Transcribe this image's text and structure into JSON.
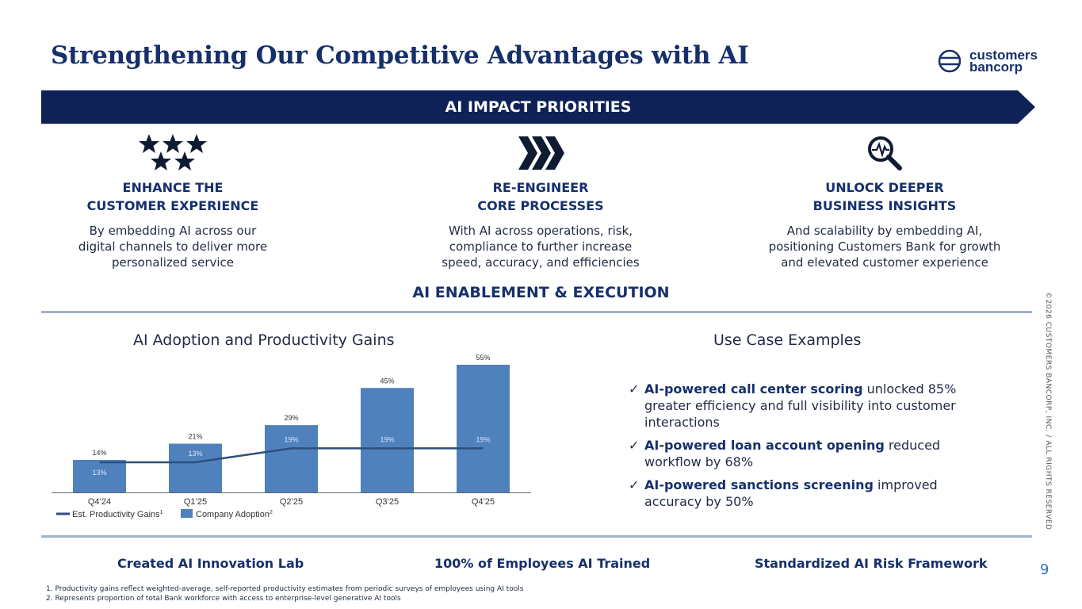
{
  "title": "Strengthening Our Competitive Advantages with AI",
  "logo": {
    "line1": "customers",
    "line2": "bancorp"
  },
  "banner": "AI IMPACT PRIORITIES",
  "priorities": [
    {
      "icon": "stars-icon",
      "head1": "ENHANCE THE",
      "head2": "CUSTOMER EXPERIENCE",
      "d1": "By embedding AI across our",
      "d2": "digital channels to deliver more",
      "d3": "personalized service"
    },
    {
      "icon": "chevrons-icon",
      "head1": "RE-ENGINEER",
      "head2": "CORE PROCESSES",
      "d1": "With AI across operations, risk,",
      "d2": "compliance to further increase",
      "d3": "speed, accuracy, and efficiencies"
    },
    {
      "icon": "magnifier-pulse-icon",
      "head1": "UNLOCK DEEPER",
      "head2": "BUSINESS INSIGHTS",
      "d1": "And scalability by embedding AI,",
      "d2": "positioning Customers Bank for growth",
      "d3": "and elevated customer experience"
    }
  ],
  "section_title": "AI ENABLEMENT & EXECUTION",
  "chart_title": "AI Adoption and Productivity Gains",
  "use_title": "Use Case Examples",
  "chart_data": {
    "type": "bar",
    "categories": [
      "Q4’24",
      "Q1’25",
      "Q2’25",
      "Q3’25",
      "Q4’25"
    ],
    "series": [
      {
        "name": "Company Adoption",
        "sup": "2",
        "kind": "bar",
        "values": [
          14,
          21,
          29,
          45,
          55
        ],
        "labels": [
          "14%",
          "21%",
          "29%",
          "45%",
          "55%"
        ]
      },
      {
        "name": "Est. Productivity Gains",
        "sup": "1",
        "kind": "line",
        "values": [
          13,
          13,
          19,
          19,
          19
        ],
        "labels": [
          "13%",
          "13%",
          "19%",
          "19%",
          "19%"
        ]
      }
    ],
    "ylim": [
      0,
      55
    ],
    "colors": {
      "bar": "#4f81bd",
      "line": "#2c4f7c"
    }
  },
  "use_cases": [
    {
      "bold": "AI-powered call center scoring",
      "rest": " unlocked 85% greater efficiency and full visibility into customer interactions"
    },
    {
      "bold": "AI-powered loan account opening",
      "rest": " reduced workflow by 68%"
    },
    {
      "bold": "AI-powered sanctions screening",
      "rest": " improved accuracy by 50%"
    }
  ],
  "pillars": [
    "Created AI Innovation Lab",
    "100% of Employees AI Trained",
    "Standardized AI Risk Framework"
  ],
  "page_number": "9",
  "copyright": "©2026 CUSTOMERS BANCORP, INC. / ALL RIGHTS RESERVED",
  "footnotes": [
    "1.   Productivity gains reflect weighted-average, self-reported productivity estimates from periodic surveys of employees using AI tools",
    "2.   Represents proportion of total Bank workforce with access to enterprise-level generative AI tools"
  ]
}
